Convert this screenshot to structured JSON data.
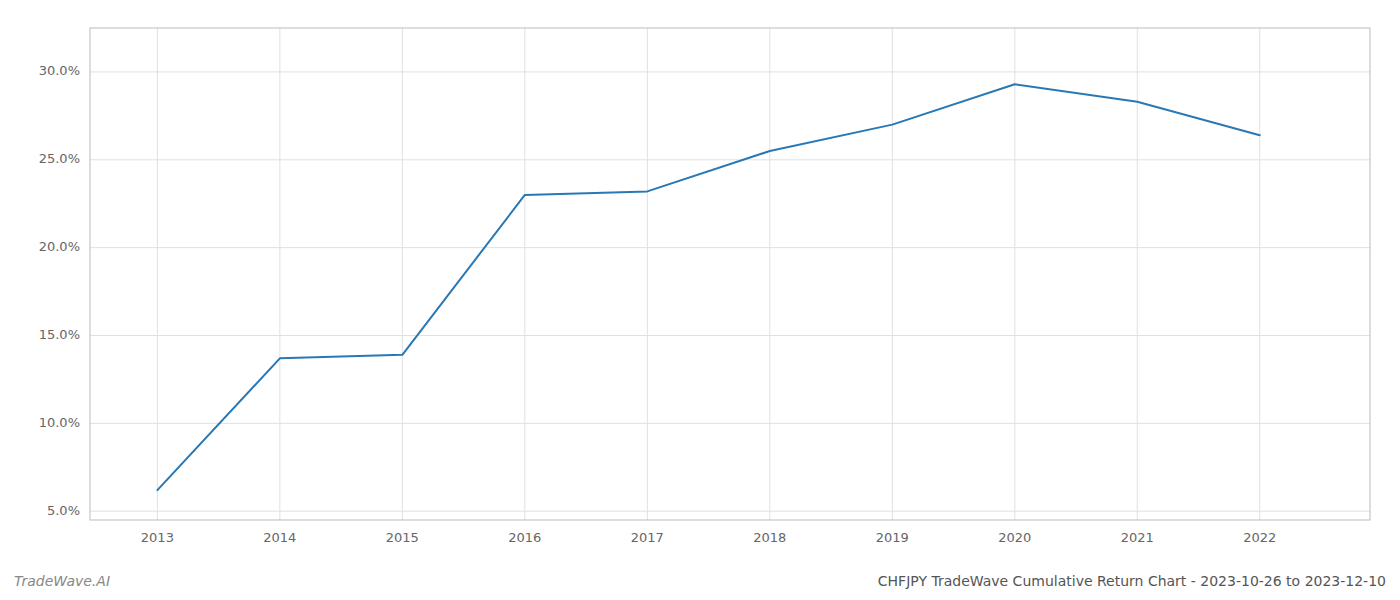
{
  "chart_data": {
    "type": "line",
    "title": "CHFJPY TradeWave Cumulative Return Chart - 2023-10-26 to 2023-12-10",
    "annotations": [
      "TradeWave.AI"
    ],
    "x": [
      2013,
      2014,
      2015,
      2016,
      2017,
      2018,
      2019,
      2020,
      2021,
      2022
    ],
    "values": [
      6.2,
      13.7,
      13.9,
      23.0,
      23.2,
      25.5,
      27.0,
      29.3,
      28.3,
      26.4
    ],
    "color": "#2878b5",
    "xlim": [
      2012.45,
      2022.9
    ],
    "xticks": [
      2013,
      2014,
      2015,
      2016,
      2017,
      2018,
      2019,
      2020,
      2021,
      2022
    ],
    "ylim": [
      4.5,
      32.5
    ],
    "yticks": [
      {
        "value": 5.0,
        "label": "5.0%"
      },
      {
        "value": 10.0,
        "label": "10.0%"
      },
      {
        "value": 15.0,
        "label": "15.0%"
      },
      {
        "value": 20.0,
        "label": "20.0%"
      },
      {
        "value": 25.0,
        "label": "25.0%"
      },
      {
        "value": 30.0,
        "label": "30.0%"
      }
    ],
    "grid": true
  }
}
